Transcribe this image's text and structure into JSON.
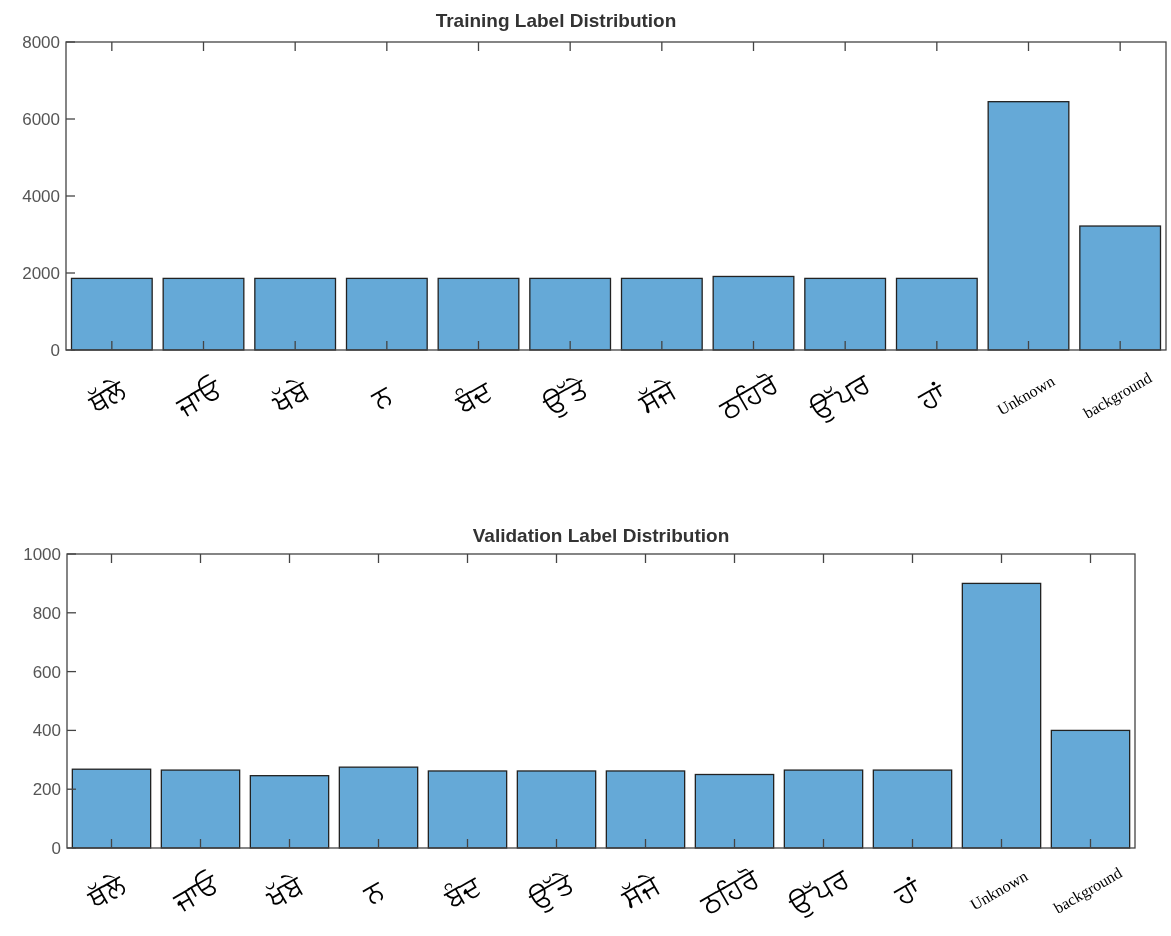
{
  "chart_data": [
    {
      "type": "bar",
      "title": "Training Label Distribution",
      "categories": [
        "ਥੱਲੇ",
        "ਜਾਓ",
        "ਖੱਬੇ",
        "ਨ",
        "ਬੰਦ",
        "ਉੱਤੇ",
        "ਸੱਜੇ",
        "ਠਹਿਰੋ",
        "ਉੱਪਰ",
        "ਹਾਂ",
        "Unknown",
        "background"
      ],
      "values": [
        1860,
        1860,
        1860,
        1860,
        1860,
        1860,
        1860,
        1910,
        1860,
        1860,
        6450,
        3220
      ],
      "color": "#65a9d7",
      "ylim": [
        0,
        8000
      ],
      "yticks": [
        0,
        2000,
        4000,
        6000,
        8000
      ]
    },
    {
      "type": "bar",
      "title": "Validation Label Distribution",
      "categories": [
        "ਥੱਲੇ",
        "ਜਾਓ",
        "ਖੱਬੇ",
        "ਨ",
        "ਬੰਦ",
        "ਉੱਤੇ",
        "ਸੱਜੇ",
        "ਠਹਿਰੋ",
        "ਉੱਪਰ",
        "ਹਾਂ",
        "Unknown",
        "background"
      ],
      "values": [
        268,
        265,
        246,
        275,
        262,
        262,
        262,
        250,
        265,
        265,
        900,
        400
      ],
      "color": "#65a9d7",
      "ylim": [
        0,
        1000
      ],
      "yticks": [
        0,
        200,
        400,
        600,
        800,
        1000
      ]
    }
  ]
}
